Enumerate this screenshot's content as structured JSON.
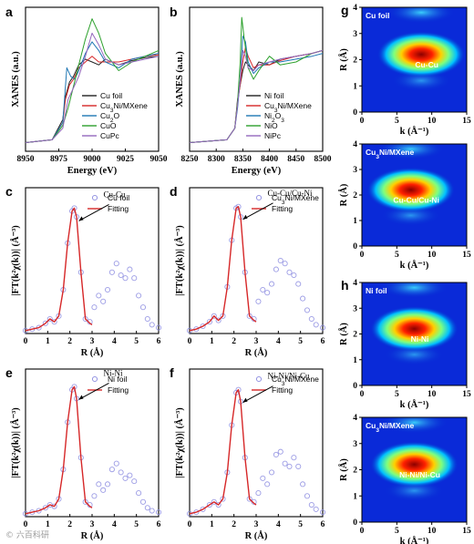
{
  "chart_data": [
    {
      "panel": "a",
      "type": "line",
      "xlabel": "Energy (eV)",
      "ylabel": "XANES (a.u.)",
      "xlim": [
        8950,
        9050
      ],
      "xticks": [
        8950,
        8975,
        9000,
        9025,
        9050
      ],
      "series": [
        {
          "name": "Cu foil",
          "color": "#222222",
          "x": [
            8950,
            8970,
            8978,
            8980,
            8983,
            8986,
            8990,
            8995,
            9000,
            9005,
            9010,
            9020,
            9030,
            9040,
            9050
          ],
          "y": [
            0.06,
            0.08,
            0.22,
            0.38,
            0.48,
            0.52,
            0.6,
            0.64,
            0.62,
            0.6,
            0.64,
            0.6,
            0.63,
            0.65,
            0.66
          ]
        },
        {
          "name": "Cu3Ni/MXene",
          "color": "#d62728",
          "x": [
            8950,
            8970,
            8978,
            8980,
            8983,
            8986,
            8990,
            8995,
            9000,
            9005,
            9010,
            9020,
            9030,
            9040,
            9050
          ],
          "y": [
            0.06,
            0.08,
            0.2,
            0.36,
            0.46,
            0.5,
            0.58,
            0.62,
            0.66,
            0.62,
            0.62,
            0.62,
            0.64,
            0.66,
            0.67
          ]
        },
        {
          "name": "Cu2O",
          "color": "#1f77b4",
          "x": [
            8950,
            8970,
            8978,
            8981,
            8984,
            8987,
            8990,
            8995,
            9000,
            9005,
            9010,
            9020,
            9030,
            9040,
            9050
          ],
          "y": [
            0.06,
            0.08,
            0.2,
            0.58,
            0.52,
            0.5,
            0.56,
            0.68,
            0.76,
            0.7,
            0.62,
            0.58,
            0.64,
            0.66,
            0.68
          ]
        },
        {
          "name": "CuO",
          "color": "#2ca02c",
          "x": [
            8950,
            8970,
            8978,
            8982,
            8986,
            8990,
            8995,
            9000,
            9005,
            9010,
            9020,
            9030,
            9040,
            9050
          ],
          "y": [
            0.06,
            0.08,
            0.18,
            0.3,
            0.45,
            0.6,
            0.78,
            0.92,
            0.82,
            0.68,
            0.56,
            0.62,
            0.66,
            0.7
          ]
        },
        {
          "name": "CuPc",
          "color": "#9467bd",
          "x": [
            8950,
            8970,
            8978,
            8982,
            8986,
            8990,
            8995,
            9000,
            9005,
            9010,
            9020,
            9030,
            9040,
            9050
          ],
          "y": [
            0.06,
            0.08,
            0.16,
            0.36,
            0.44,
            0.52,
            0.66,
            0.82,
            0.74,
            0.64,
            0.6,
            0.62,
            0.64,
            0.66
          ]
        }
      ]
    },
    {
      "panel": "b",
      "type": "line",
      "xlabel": "Energy (eV)",
      "ylabel": "XANES (a.u.)",
      "xlim": [
        8250,
        8500
      ],
      "xticks": [
        8250,
        8300,
        8350,
        8400,
        8450,
        8500
      ],
      "series": [
        {
          "name": "Ni foil",
          "color": "#222222",
          "x": [
            8250,
            8320,
            8335,
            8340,
            8345,
            8350,
            8355,
            8360,
            8370,
            8380,
            8400,
            8420,
            8450,
            8480,
            8500
          ],
          "y": [
            0.06,
            0.08,
            0.16,
            0.36,
            0.46,
            0.56,
            0.62,
            0.6,
            0.56,
            0.62,
            0.6,
            0.64,
            0.66,
            0.68,
            0.7
          ]
        },
        {
          "name": "Cu3Ni/MXene",
          "color": "#d62728",
          "x": [
            8250,
            8320,
            8335,
            8340,
            8345,
            8350,
            8355,
            8360,
            8370,
            8380,
            8400,
            8420,
            8450,
            8480,
            8500
          ],
          "y": [
            0.06,
            0.08,
            0.16,
            0.34,
            0.46,
            0.62,
            0.72,
            0.66,
            0.58,
            0.6,
            0.6,
            0.63,
            0.66,
            0.68,
            0.7
          ]
        },
        {
          "name": "Ni2O3",
          "color": "#1f77b4",
          "x": [
            8250,
            8320,
            8335,
            8340,
            8345,
            8350,
            8355,
            8360,
            8370,
            8380,
            8400,
            8420,
            8450,
            8480,
            8500
          ],
          "y": [
            0.06,
            0.08,
            0.16,
            0.3,
            0.5,
            0.8,
            0.76,
            0.62,
            0.54,
            0.58,
            0.62,
            0.62,
            0.64,
            0.66,
            0.68
          ]
        },
        {
          "name": "NiO",
          "color": "#2ca02c",
          "x": [
            8250,
            8320,
            8335,
            8340,
            8345,
            8348,
            8352,
            8360,
            8370,
            8380,
            8400,
            8420,
            8450,
            8480,
            8500
          ],
          "y": [
            0.06,
            0.08,
            0.16,
            0.34,
            0.62,
            0.93,
            0.8,
            0.58,
            0.5,
            0.56,
            0.66,
            0.6,
            0.62,
            0.68,
            0.7
          ]
        },
        {
          "name": "NiPc",
          "color": "#9467bd",
          "x": [
            8250,
            8320,
            8335,
            8340,
            8345,
            8350,
            8355,
            8360,
            8370,
            8380,
            8400,
            8420,
            8450,
            8480,
            8500
          ],
          "y": [
            0.06,
            0.08,
            0.16,
            0.32,
            0.5,
            0.7,
            0.66,
            0.58,
            0.56,
            0.6,
            0.62,
            0.64,
            0.66,
            0.68,
            0.7
          ]
        }
      ]
    },
    {
      "panel": "c",
      "type": "line",
      "xlabel": "R (Å)",
      "ylabel": "|FT(k²χ(k))| (Å⁻³)",
      "xlim": [
        0,
        6
      ],
      "xticks": [
        0,
        1,
        2,
        3,
        4,
        5,
        6
      ],
      "annotation": "Cu-Cu",
      "peak": [
        2.2,
        0.86
      ],
      "series": [
        {
          "name": "Cu foil",
          "kind": "markers",
          "color": "#8c8ce0",
          "x": [
            0,
            0.3,
            0.6,
            0.9,
            1.1,
            1.3,
            1.5,
            1.7,
            1.9,
            2.1,
            2.2,
            2.3,
            2.5,
            2.7,
            2.9,
            3.1,
            3.3,
            3.5,
            3.7,
            3.9,
            4.1,
            4.3,
            4.5,
            4.7,
            4.9,
            5.1,
            5.3,
            5.5,
            5.7,
            6.0
          ],
          "y": [
            0.02,
            0.03,
            0.04,
            0.07,
            0.1,
            0.08,
            0.12,
            0.3,
            0.62,
            0.84,
            0.86,
            0.8,
            0.42,
            0.1,
            0.08,
            0.18,
            0.26,
            0.22,
            0.3,
            0.42,
            0.48,
            0.4,
            0.38,
            0.44,
            0.38,
            0.26,
            0.18,
            0.1,
            0.06,
            0.04
          ]
        },
        {
          "name": "Fitting",
          "kind": "line",
          "color": "#d62728",
          "x": [
            0,
            0.3,
            0.6,
            0.9,
            1.1,
            1.3,
            1.5,
            1.7,
            1.9,
            2.1,
            2.2,
            2.3,
            2.5,
            2.7,
            2.9,
            3.0
          ],
          "y": [
            0.02,
            0.03,
            0.04,
            0.07,
            0.1,
            0.08,
            0.12,
            0.3,
            0.62,
            0.84,
            0.86,
            0.8,
            0.42,
            0.1,
            0.07,
            0.06
          ]
        }
      ]
    },
    {
      "panel": "d",
      "type": "line",
      "xlabel": "R (Å)",
      "ylabel": "|FT(k²χ(k))| (Å⁻³)",
      "xlim": [
        0,
        6
      ],
      "xticks": [
        0,
        1,
        2,
        3,
        4,
        5,
        6
      ],
      "annotation": "Cu-Cu/Cu-Ni",
      "peak": [
        2.2,
        0.87
      ],
      "series": [
        {
          "name": "Cu3Ni/MXene",
          "kind": "markers",
          "color": "#8c8ce0",
          "x": [
            0,
            0.3,
            0.6,
            0.9,
            1.1,
            1.3,
            1.5,
            1.7,
            1.9,
            2.1,
            2.2,
            2.3,
            2.5,
            2.7,
            2.9,
            3.1,
            3.3,
            3.5,
            3.7,
            3.9,
            4.1,
            4.3,
            4.5,
            4.7,
            4.9,
            5.1,
            5.3,
            5.5,
            5.7,
            6.0
          ],
          "y": [
            0.02,
            0.03,
            0.05,
            0.08,
            0.12,
            0.09,
            0.12,
            0.32,
            0.64,
            0.86,
            0.87,
            0.8,
            0.42,
            0.12,
            0.1,
            0.22,
            0.3,
            0.28,
            0.34,
            0.44,
            0.5,
            0.48,
            0.42,
            0.4,
            0.34,
            0.24,
            0.16,
            0.1,
            0.06,
            0.04
          ]
        },
        {
          "name": "Fitting",
          "kind": "line",
          "color": "#d62728",
          "x": [
            0,
            0.3,
            0.6,
            0.9,
            1.1,
            1.3,
            1.5,
            1.7,
            1.9,
            2.1,
            2.2,
            2.3,
            2.5,
            2.7,
            2.9,
            3.0
          ],
          "y": [
            0.02,
            0.03,
            0.05,
            0.08,
            0.12,
            0.09,
            0.12,
            0.32,
            0.64,
            0.86,
            0.87,
            0.8,
            0.42,
            0.12,
            0.09,
            0.08
          ]
        }
      ]
    },
    {
      "panel": "e",
      "type": "line",
      "xlabel": "R (Å)",
      "ylabel": "|FT(k²χ(k))| (Å⁻³)",
      "xlim": [
        0,
        6
      ],
      "xticks": [
        0,
        1,
        2,
        3,
        4,
        5,
        6
      ],
      "annotation": "Ni-Ni",
      "peak": [
        2.2,
        0.88
      ],
      "series": [
        {
          "name": "Ni foil",
          "kind": "markers",
          "color": "#8c8ce0",
          "x": [
            0,
            0.3,
            0.6,
            0.9,
            1.1,
            1.3,
            1.5,
            1.7,
            1.9,
            2.1,
            2.2,
            2.3,
            2.5,
            2.7,
            2.9,
            3.1,
            3.3,
            3.5,
            3.7,
            3.9,
            4.1,
            4.3,
            4.5,
            4.7,
            4.9,
            5.1,
            5.3,
            5.5,
            5.7,
            6.0
          ],
          "y": [
            0.02,
            0.03,
            0.04,
            0.06,
            0.08,
            0.07,
            0.12,
            0.32,
            0.64,
            0.86,
            0.88,
            0.8,
            0.4,
            0.1,
            0.08,
            0.14,
            0.22,
            0.18,
            0.22,
            0.32,
            0.36,
            0.3,
            0.26,
            0.28,
            0.24,
            0.16,
            0.1,
            0.06,
            0.04,
            0.03
          ]
        },
        {
          "name": "Fitting",
          "kind": "line",
          "color": "#d62728",
          "x": [
            0,
            0.3,
            0.6,
            0.9,
            1.1,
            1.3,
            1.5,
            1.7,
            1.9,
            2.1,
            2.2,
            2.3,
            2.5,
            2.7,
            2.9,
            3.0
          ],
          "y": [
            0.02,
            0.03,
            0.04,
            0.06,
            0.08,
            0.07,
            0.12,
            0.32,
            0.64,
            0.86,
            0.88,
            0.8,
            0.4,
            0.1,
            0.07,
            0.06
          ]
        }
      ]
    },
    {
      "panel": "f",
      "type": "line",
      "xlabel": "R (Å)",
      "ylabel": "|FT(k²χ(k))| (Å⁻³)",
      "xlim": [
        0,
        6
      ],
      "xticks": [
        0,
        1,
        2,
        3,
        4,
        5,
        6
      ],
      "annotation": "Ni-Ni/Ni-Cu",
      "peak": [
        2.2,
        0.86
      ],
      "series": [
        {
          "name": "Cu3Ni/MXene",
          "kind": "markers",
          "color": "#8c8ce0",
          "x": [
            0,
            0.3,
            0.6,
            0.9,
            1.1,
            1.3,
            1.5,
            1.7,
            1.9,
            2.1,
            2.2,
            2.3,
            2.5,
            2.7,
            2.9,
            3.1,
            3.3,
            3.5,
            3.7,
            3.9,
            4.1,
            4.3,
            4.5,
            4.7,
            4.9,
            5.1,
            5.3,
            5.5,
            5.7,
            6.0
          ],
          "y": [
            0.02,
            0.03,
            0.05,
            0.08,
            0.1,
            0.08,
            0.12,
            0.3,
            0.62,
            0.84,
            0.86,
            0.78,
            0.4,
            0.12,
            0.1,
            0.16,
            0.26,
            0.22,
            0.3,
            0.42,
            0.44,
            0.36,
            0.34,
            0.4,
            0.34,
            0.22,
            0.14,
            0.08,
            0.05,
            0.03
          ]
        },
        {
          "name": "Fitting",
          "kind": "line",
          "color": "#d62728",
          "x": [
            0,
            0.3,
            0.6,
            0.9,
            1.1,
            1.3,
            1.5,
            1.7,
            1.9,
            2.1,
            2.2,
            2.3,
            2.5,
            2.7,
            2.9,
            3.0
          ],
          "y": [
            0.02,
            0.03,
            0.05,
            0.08,
            0.1,
            0.08,
            0.12,
            0.3,
            0.62,
            0.84,
            0.86,
            0.78,
            0.4,
            0.12,
            0.09,
            0.08
          ]
        }
      ]
    },
    {
      "panel": "g",
      "type": "heatmap",
      "xlabel": "k (Å⁻¹)",
      "ylabel": "R (Å)",
      "xlim": [
        0,
        15
      ],
      "ylim": [
        0,
        4
      ],
      "xticks": [
        0,
        5,
        10,
        15
      ],
      "yticks": [
        0,
        1,
        2,
        3,
        4
      ],
      "maps": [
        {
          "title": "Cu foil",
          "label": "Cu-Cu",
          "center_k": 8.5,
          "center_R": 2.2
        },
        {
          "title": "Cu3Ni/MXene",
          "label": "Cu-Cu/Cu-Ni",
          "center_k": 7.0,
          "center_R": 2.2
        }
      ]
    },
    {
      "panel": "h",
      "type": "heatmap",
      "xlabel": "k (Å⁻¹)",
      "ylabel": "R (Å)",
      "xlim": [
        0,
        15
      ],
      "ylim": [
        0,
        4
      ],
      "xticks": [
        0,
        5,
        10,
        15
      ],
      "yticks": [
        0,
        1,
        2,
        3,
        4
      ],
      "maps": [
        {
          "title": "Ni foil",
          "label": "Ni-Ni",
          "center_k": 7.5,
          "center_R": 2.2
        },
        {
          "title": "Cu3Ni/MXene",
          "label": "Ni-Ni/Ni-Cu",
          "center_k": 7.5,
          "center_R": 2.2
        }
      ]
    }
  ],
  "watermark": "© 六百科研"
}
